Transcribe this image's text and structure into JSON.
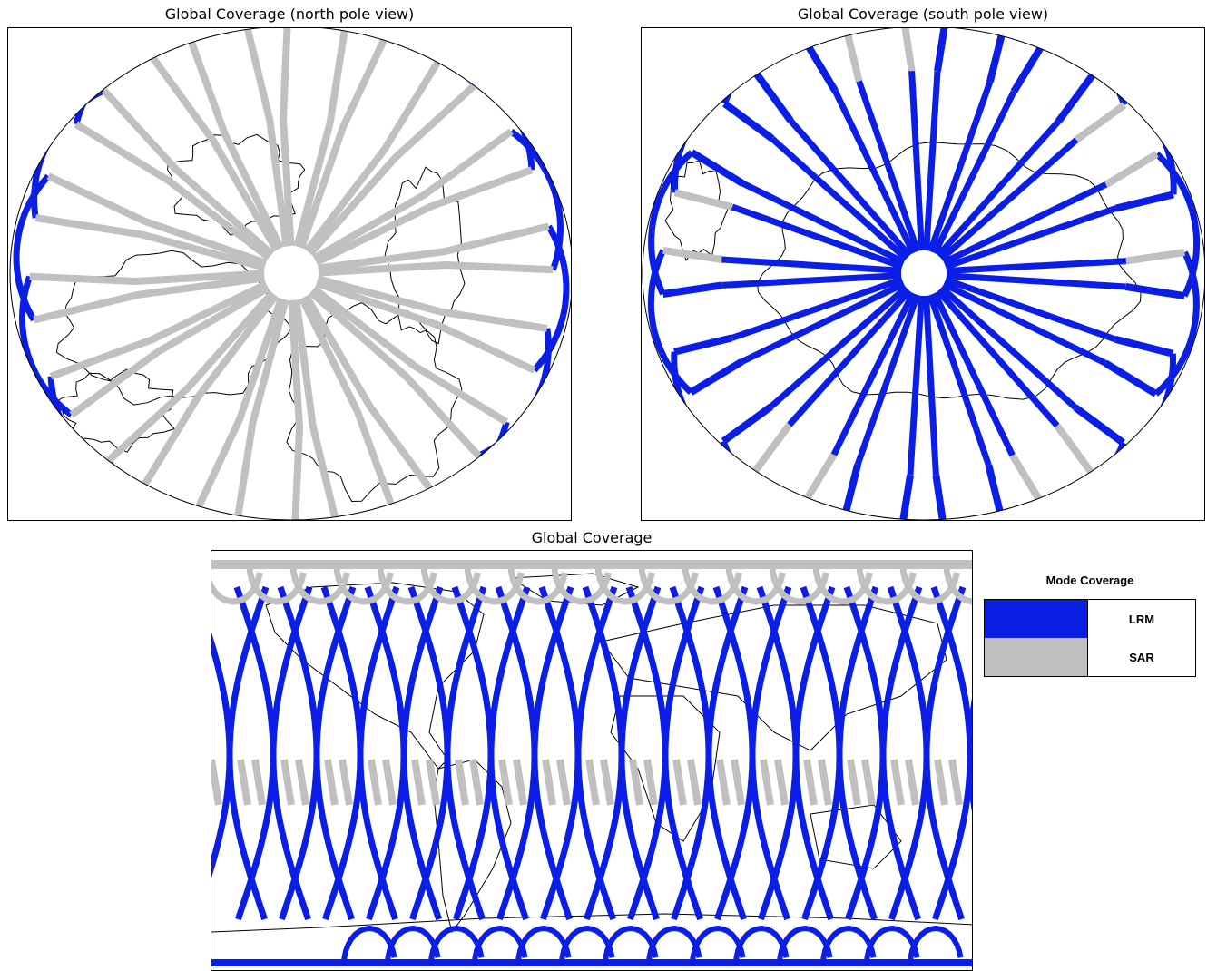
{
  "panels": {
    "north": {
      "title": "Global Coverage (north pole view)"
    },
    "south": {
      "title": "Global Coverage (south pole view)"
    },
    "global": {
      "title": "Global Coverage"
    }
  },
  "legend": {
    "title": "Mode Coverage",
    "items": [
      {
        "label": "LRM",
        "color": "#0a1ee6"
      },
      {
        "label": "SAR",
        "color": "#c0c0c0"
      }
    ]
  },
  "colors": {
    "lrm": "#0a1ee6",
    "sar": "#c0c0c0",
    "coast": "#000000"
  }
}
